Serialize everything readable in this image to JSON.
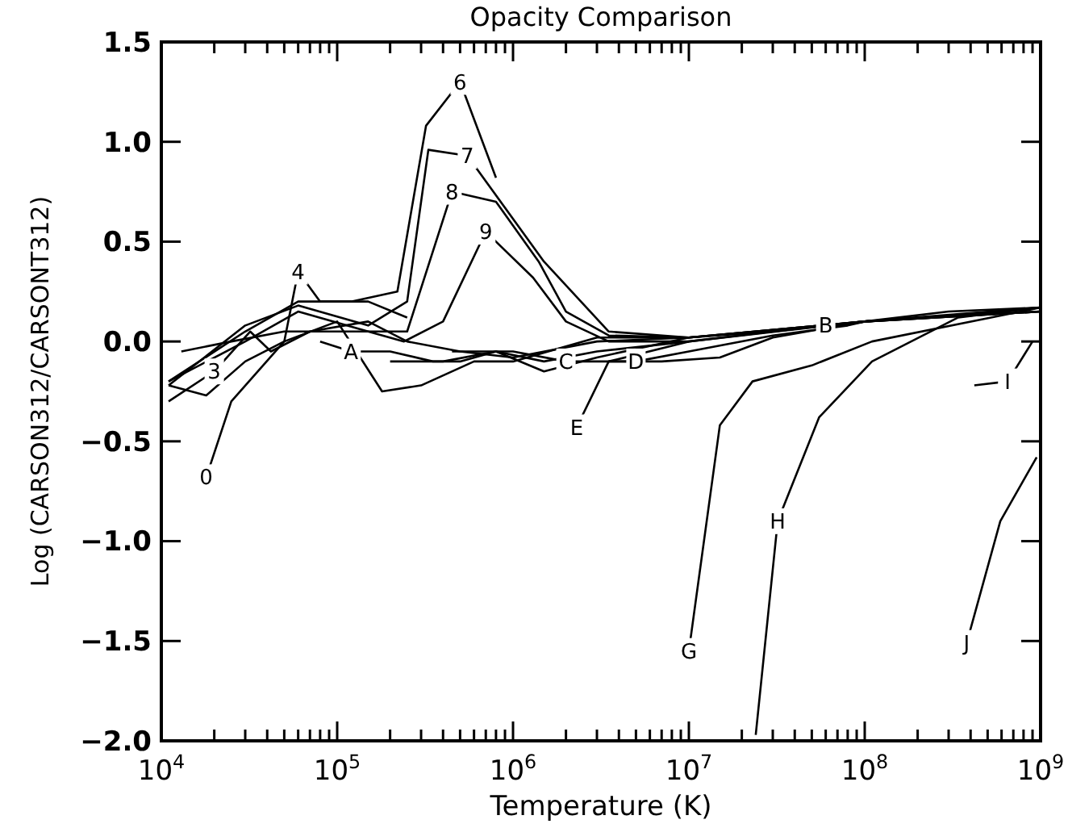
{
  "chart_data": {
    "type": "line",
    "title": "Opacity Comparison",
    "xlabel": "Temperature (K)",
    "ylabel": "Log (CARSON312/CARSONT312)",
    "log": "x",
    "xlim": [
      10000,
      1000000000
    ],
    "ylim": [
      -2,
      1.5
    ],
    "xticks": [
      {
        "value": 10000,
        "label": "10$^{4}$"
      },
      {
        "value": 20000,
        "label": null
      },
      {
        "value": 30000,
        "label": null
      },
      {
        "value": 40000,
        "label": null
      },
      {
        "value": 50000,
        "label": null
      },
      {
        "value": 60000,
        "label": null
      },
      {
        "value": 70000,
        "label": null
      },
      {
        "value": 80000,
        "label": null
      },
      {
        "value": 90000,
        "label": null
      },
      {
        "value": 100000,
        "label": "10$^{5}$"
      },
      {
        "value": 200000,
        "label": null
      },
      {
        "value": 300000,
        "label": null
      },
      {
        "value": 400000,
        "label": null
      },
      {
        "value": 500000,
        "label": null
      },
      {
        "value": 600000,
        "label": null
      },
      {
        "value": 700000,
        "label": null
      },
      {
        "value": 800000,
        "label": null
      },
      {
        "value": 900000,
        "label": null
      },
      {
        "value": 1000000,
        "label": "10$^{6}$"
      },
      {
        "value": 2000000,
        "label": null
      },
      {
        "value": 3000000,
        "label": null
      },
      {
        "value": 4000000,
        "label": null
      },
      {
        "value": 5000000,
        "label": null
      },
      {
        "value": 6000000,
        "label": null
      },
      {
        "value": 7000000,
        "label": null
      },
      {
        "value": 8000000,
        "label": null
      },
      {
        "value": 9000000,
        "label": null
      },
      {
        "value": 10000000,
        "label": "10$^{7}$"
      },
      {
        "value": 20000000,
        "label": null
      },
      {
        "value": 30000000,
        "label": null
      },
      {
        "value": 40000000,
        "label": null
      },
      {
        "value": 50000000,
        "label": null
      },
      {
        "value": 60000000,
        "label": null
      },
      {
        "value": 70000000,
        "label": null
      },
      {
        "value": 80000000,
        "label": null
      },
      {
        "value": 90000000,
        "label": null
      },
      {
        "value": 100000000,
        "label": "10$^{8}$"
      },
      {
        "value": 200000000,
        "label": null
      },
      {
        "value": 300000000,
        "label": null
      },
      {
        "value": 400000000,
        "label": null
      },
      {
        "value": 500000000,
        "label": null
      },
      {
        "value": 600000000,
        "label": null
      },
      {
        "value": 700000000,
        "label": null
      },
      {
        "value": 800000000,
        "label": null
      },
      {
        "value": 900000000,
        "label": null
      },
      {
        "value": 1000000000,
        "label": "10$^{9}$"
      }
    ],
    "yticks": [
      {
        "value": -2,
        "label": "−2.0"
      },
      {
        "value": -1.5,
        "label": "−1.5"
      },
      {
        "value": -1,
        "label": "−1.0"
      },
      {
        "value": -0.5,
        "label": "−0.5"
      },
      {
        "value": 0,
        "label": "0.0"
      },
      {
        "value": 0.5,
        "label": "0.5"
      },
      {
        "value": 1,
        "label": "1.0"
      },
      {
        "value": 1.5,
        "label": "1.5"
      }
    ],
    "series": [
      {
        "name": "0",
        "color": "#000000",
        "x": [
          18000,
          25000,
          50000,
          100000,
          180000,
          300000,
          600000,
          1000000,
          3000000,
          10000000,
          100000000,
          1000000000
        ],
        "values": [
          -0.68,
          -0.3,
          0.0,
          0.1,
          -0.25,
          -0.22,
          -0.1,
          -0.1,
          0.02,
          0.02,
          0.1,
          0.15
        ]
      },
      {
        "name": "3",
        "color": "#000000",
        "x": [
          11000,
          20000,
          32000,
          42000,
          70000,
          150000,
          250000,
          500000,
          1000000,
          3000000,
          10000000,
          100000000,
          1000000000
        ],
        "values": [
          -0.3,
          -0.15,
          0.05,
          -0.05,
          0.05,
          0.1,
          0.0,
          -0.05,
          -0.08,
          0.0,
          0.02,
          0.1,
          0.15
        ]
      },
      {
        "name": "4",
        "color": "#000000",
        "x": [
          11000,
          18000,
          30000,
          50000,
          60000,
          80000,
          150000,
          250000
        ],
        "values": [
          -0.22,
          -0.27,
          -0.1,
          0.0,
          0.35,
          0.2,
          0.2,
          0.12
        ]
      },
      {
        "name": "6",
        "color": "#000000",
        "x": [
          11000,
          30000,
          60000,
          120000,
          220000,
          320000,
          500000,
          800000
        ],
        "values": [
          -0.2,
          0.05,
          0.2,
          0.2,
          0.25,
          1.08,
          1.3,
          0.82
        ]
      },
      {
        "name": "7",
        "color": "#000000",
        "x": [
          11000,
          30000,
          60000,
          150000,
          250000,
          330000,
          550000,
          1500000,
          3500000,
          10000000
        ],
        "values": [
          -0.22,
          0.08,
          0.18,
          0.08,
          0.2,
          0.96,
          0.93,
          0.4,
          0.05,
          0.02
        ]
      },
      {
        "name": "8",
        "color": "#000000",
        "x": [
          11000,
          30000,
          60000,
          150000,
          250000,
          450000,
          800000,
          1400000,
          2000000,
          3500000,
          10000000,
          100000000,
          1000000000
        ],
        "values": [
          -0.2,
          0.0,
          0.15,
          0.05,
          0.05,
          0.75,
          0.7,
          0.4,
          0.15,
          0.03,
          0.02,
          0.1,
          0.17
        ]
      },
      {
        "name": "9",
        "color": "#000000",
        "x": [
          13000,
          25000,
          50000,
          150000,
          240000,
          400000,
          700000,
          1300000,
          2000000,
          3500000,
          10000000,
          100000000,
          1000000000
        ],
        "values": [
          -0.05,
          0.0,
          0.05,
          0.05,
          0.0,
          0.1,
          0.55,
          0.32,
          0.1,
          0.0,
          0.0,
          0.1,
          0.15
        ]
      },
      {
        "name": "A",
        "color": "#000000",
        "x": [
          80000,
          120000,
          200000,
          350000,
          500000,
          800000,
          1500000,
          3000000,
          10000000
        ],
        "values": [
          0.0,
          -0.05,
          -0.05,
          -0.1,
          -0.1,
          -0.05,
          -0.1,
          -0.05,
          0.0
        ]
      },
      {
        "name": "B",
        "color": "#000000",
        "x": [
          200000,
          400000,
          800000,
          1500000,
          3000000,
          10000000,
          30000000,
          60000000,
          100000000,
          300000000,
          1000000000
        ],
        "values": [
          -0.1,
          -0.1,
          -0.05,
          -0.15,
          -0.08,
          0.02,
          0.05,
          0.08,
          0.1,
          0.13,
          0.17
        ]
      },
      {
        "name": "C",
        "color": "#000000",
        "x": [
          450000,
          1000000,
          2000000,
          3500000,
          10000000,
          30000000,
          100000000
        ],
        "values": [
          -0.05,
          -0.05,
          -0.1,
          -0.1,
          0.0,
          0.05,
          0.1
        ]
      },
      {
        "name": "D",
        "color": "#000000",
        "x": [
          3500000,
          5000000,
          10000000,
          30000000,
          80000000,
          100000000,
          300000000,
          1000000000
        ],
        "values": [
          -0.1,
          -0.1,
          -0.05,
          0.03,
          0.08,
          0.1,
          0.15,
          0.17
        ]
      },
      {
        "name": "E",
        "color": "#000000",
        "x": [
          2300000,
          3500000,
          7000000,
          15000000,
          30000000,
          100000000,
          500000000,
          1000000000
        ],
        "values": [
          -0.43,
          -0.1,
          -0.1,
          -0.08,
          0.02,
          0.1,
          0.14,
          0.17
        ]
      },
      {
        "name": "G",
        "color": "#000000",
        "x": [
          10000000,
          15000000,
          23000000,
          50000000,
          110000000,
          1000000000
        ],
        "values": [
          -1.55,
          -0.42,
          -0.2,
          -0.12,
          0.0,
          0.17
        ]
      },
      {
        "name": "H",
        "color": "#000000",
        "x": [
          24000000,
          32000000,
          55000000,
          110000000,
          340000000,
          1000000000
        ],
        "values": [
          -1.97,
          -0.9,
          -0.38,
          -0.1,
          0.12,
          0.17
        ]
      },
      {
        "name": "I",
        "color": "#000000",
        "x": [
          420000000,
          650000000,
          900000000
        ],
        "values": [
          -0.22,
          -0.2,
          0.0
        ]
      },
      {
        "name": "J",
        "color": "#000000",
        "x": [
          380000000,
          590000000,
          950000000
        ],
        "values": [
          -1.51,
          -0.9,
          -0.58
        ]
      }
    ]
  }
}
